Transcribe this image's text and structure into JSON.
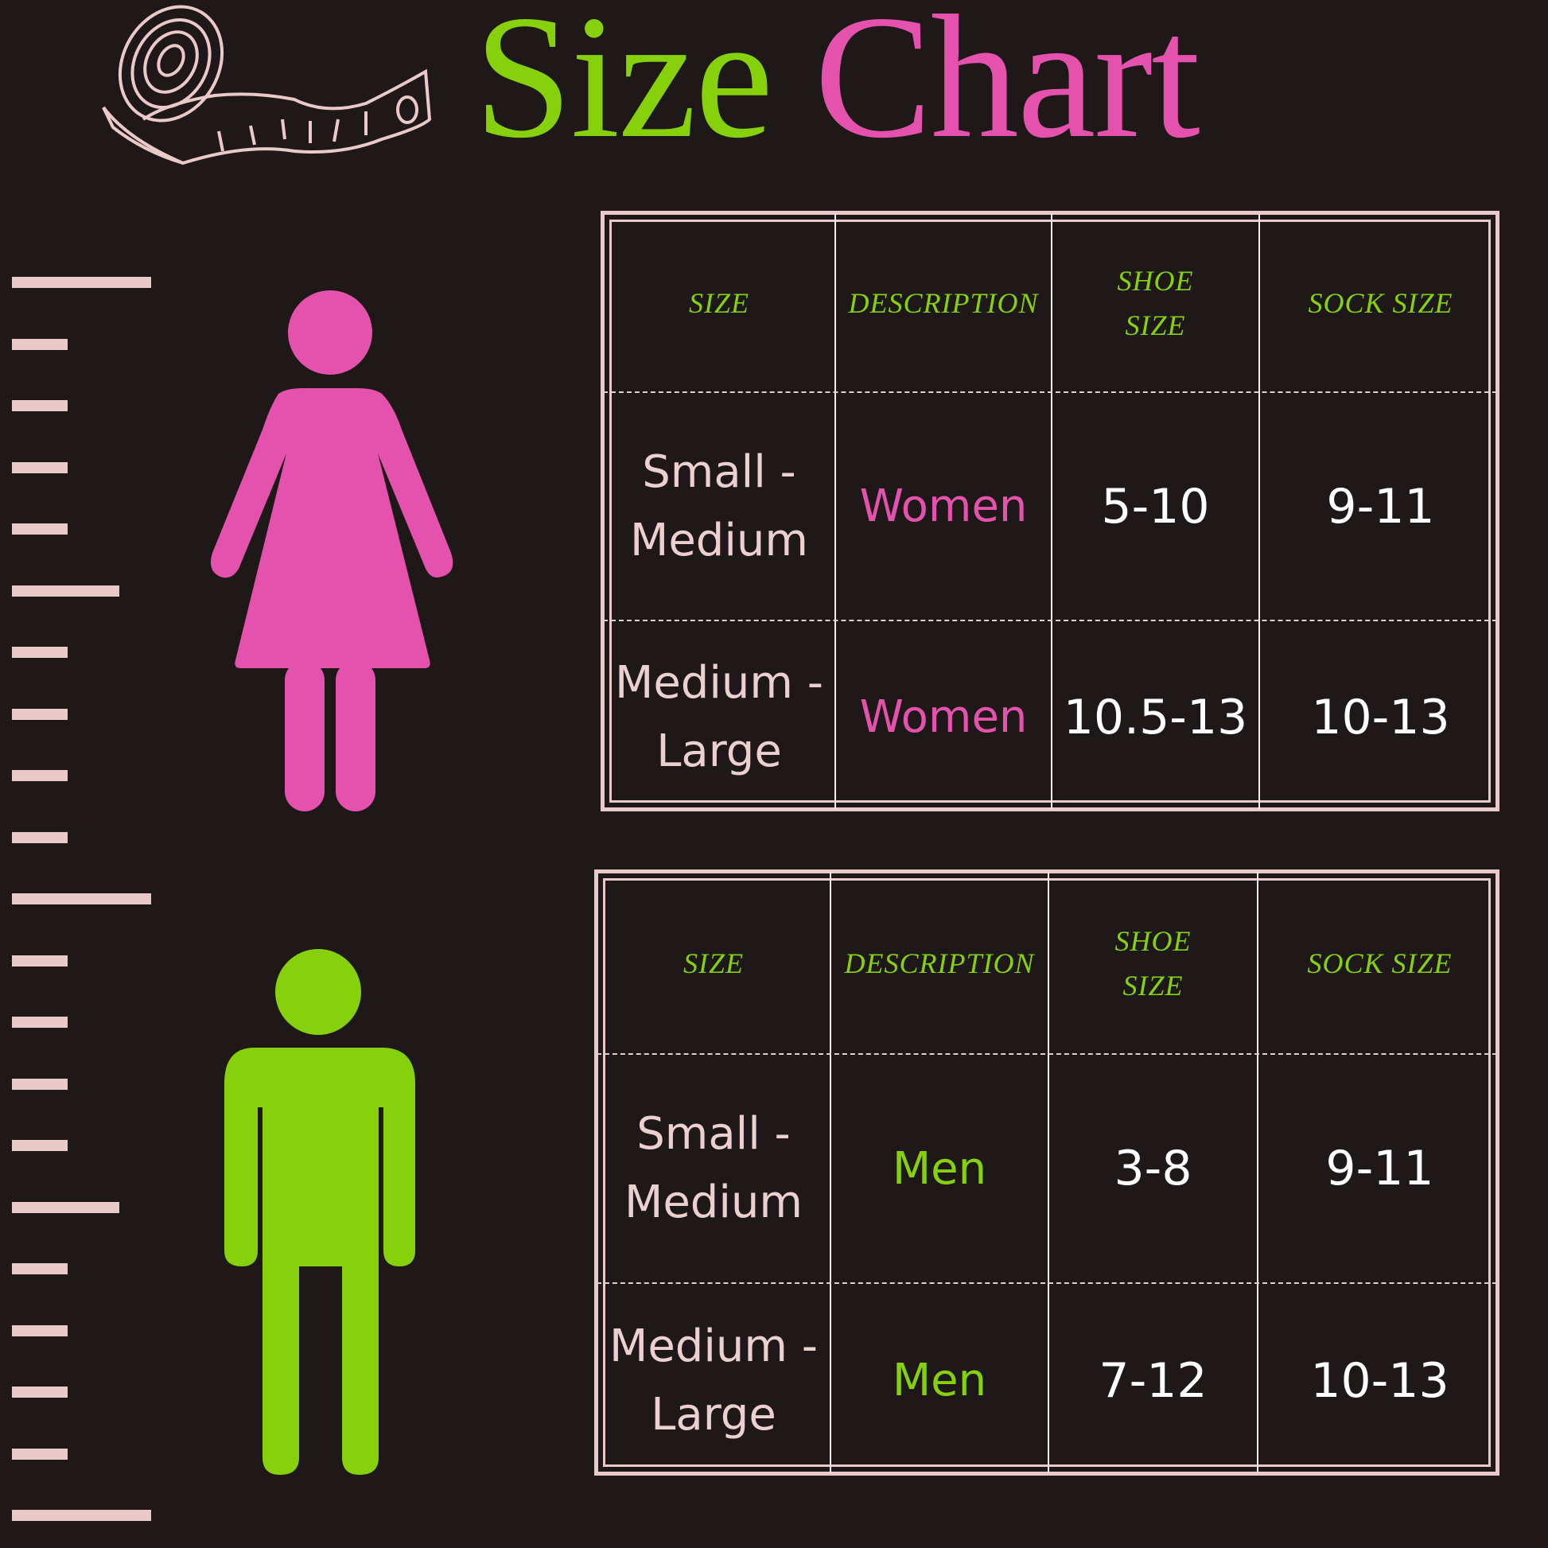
{
  "title": {
    "word1": "Size",
    "word2": "Chart"
  },
  "colors": {
    "background": "#1e1918",
    "pink": "#e452ad",
    "green": "#86d10b",
    "light_pink": "#ecc9c9",
    "white": "#ffffff"
  },
  "icons": [
    "measuring-tape-icon",
    "ruler-scale",
    "woman-figure-icon",
    "man-figure-icon"
  ],
  "tables": [
    {
      "name": "women",
      "headers": [
        "SIZE",
        "DESCRIPTION",
        "SHOE SIZE",
        "SOCK SIZE"
      ],
      "rows": [
        {
          "size": "Small - Medium",
          "description": "Women",
          "shoe": "5-10",
          "sock": "9-11"
        },
        {
          "size": "Medium - Large",
          "description": "Women",
          "shoe": "10.5-13",
          "sock": "10-13"
        }
      ],
      "description_color": "#e452ad"
    },
    {
      "name": "men",
      "headers": [
        "SIZE",
        "DESCRIPTION",
        "SHOE SIZE",
        "SOCK SIZE"
      ],
      "rows": [
        {
          "size": "Small - Medium",
          "description": "Men",
          "shoe": "3-8",
          "sock": "9-11"
        },
        {
          "size": "Medium - Large",
          "description": "Men",
          "shoe": "7-12",
          "sock": "10-13"
        }
      ],
      "description_color": "#86d10b"
    }
  ]
}
